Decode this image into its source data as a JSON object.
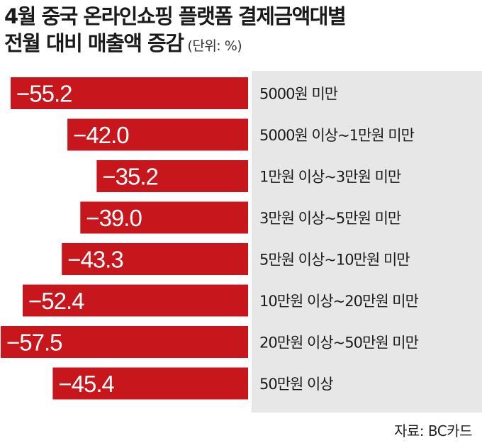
{
  "title": {
    "line1": "4월 중국 온라인쇼핑 플랫폼 결제금액대별",
    "line2": "전월 대비 매출액 증감",
    "unit": "(단위: %)"
  },
  "source": "자료: BC카드",
  "colors": {
    "bar": "#c8161d",
    "panel": "#e7e7e7",
    "label_text": "#ffffff",
    "category_text": "#1a1a1a"
  },
  "chart_data": {
    "type": "bar",
    "orientation": "horizontal",
    "title": "4월 중국 온라인쇼핑 플랫폼 결제금액대별 전월 대비 매출액 증감",
    "unit": "%",
    "categories": [
      "5000원 미만",
      "5000원 이상~1만원 미만",
      "1만원 이상~3만원 미만",
      "3만원 이상~5만원 미만",
      "5만원 이상~10만원 미만",
      "10만원 이상~20만원 미만",
      "20만원 이상~50만원 미만",
      "50만원 이상"
    ],
    "values": [
      -55.2,
      -42.0,
      -35.2,
      -39.0,
      -43.3,
      -52.4,
      -57.5,
      -45.4
    ],
    "value_labels": [
      "−55.2",
      "−42.0",
      "−35.2",
      "−39.0",
      "−43.3",
      "−52.4",
      "−57.5",
      "−45.4"
    ],
    "xlim": [
      -57.5,
      0
    ],
    "legend": "none",
    "grid": false
  }
}
